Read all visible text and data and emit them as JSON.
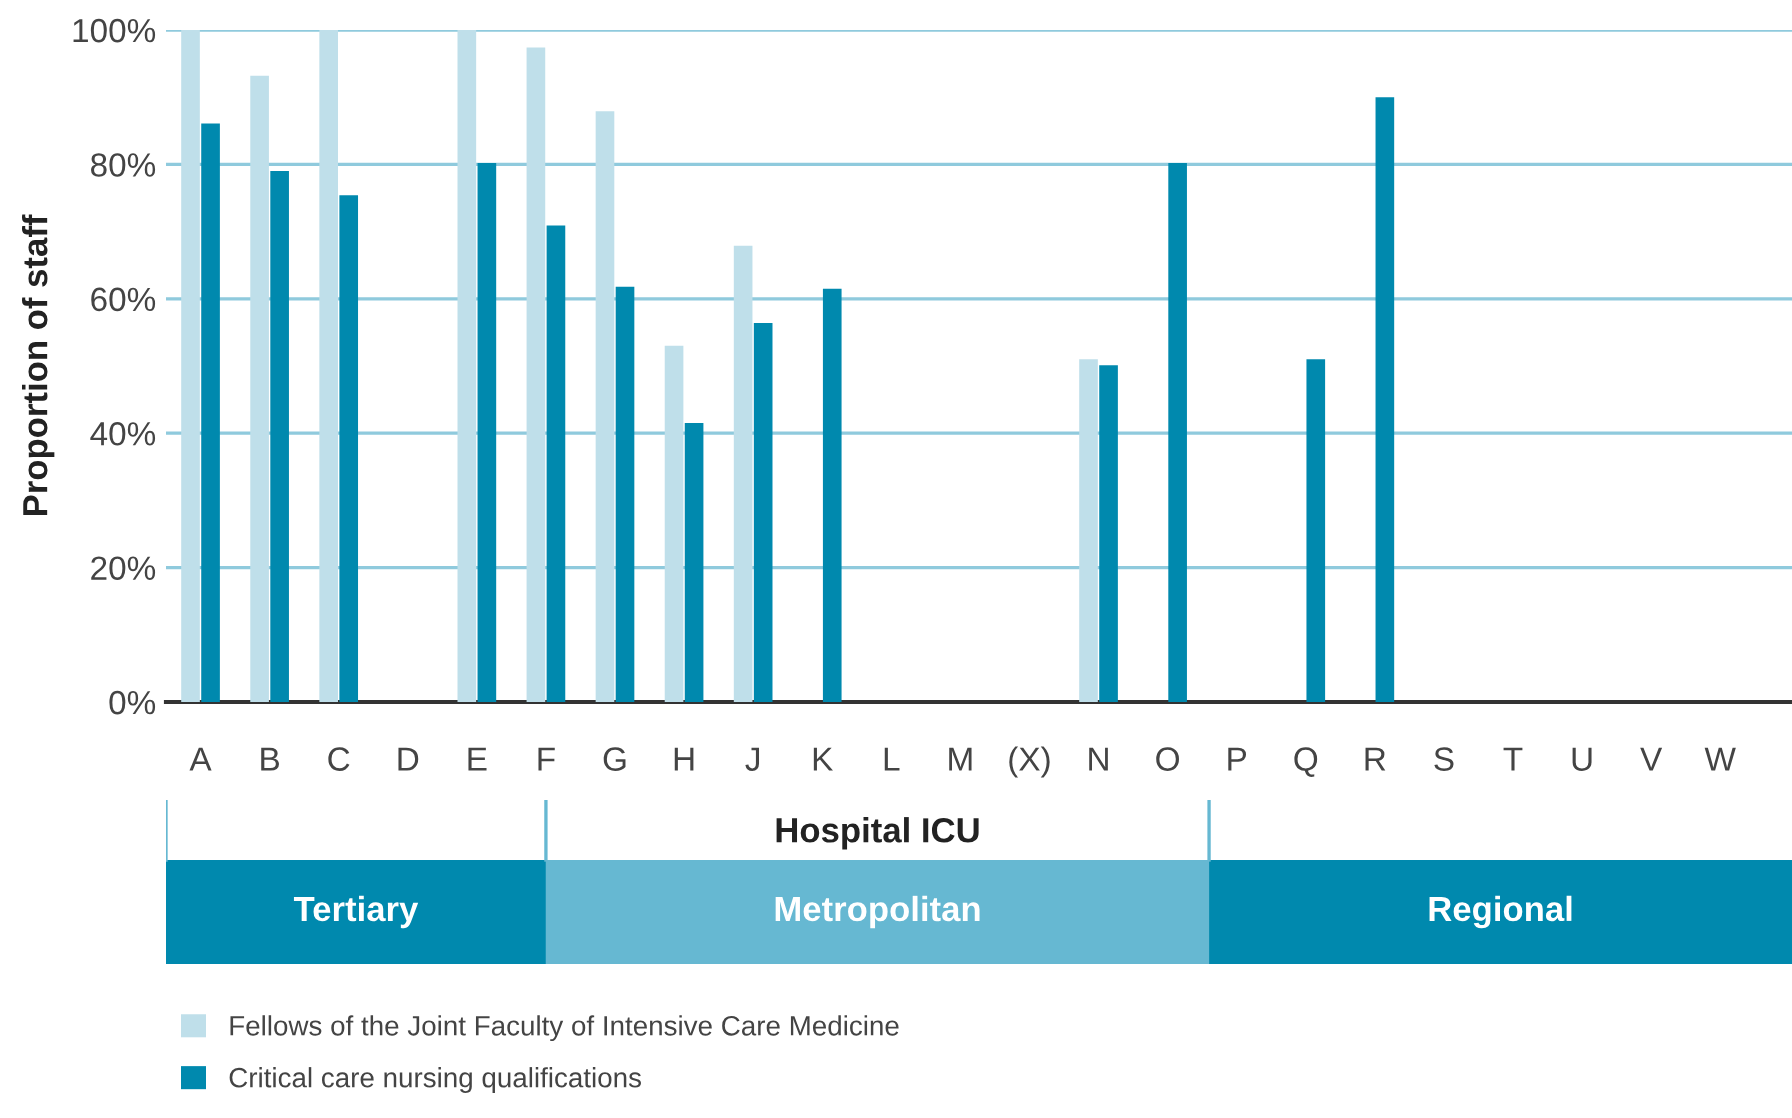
{
  "chart_data": {
    "type": "bar",
    "ylabel": "Proportion of staff",
    "categories": [
      "A",
      "B",
      "C",
      "D",
      "E",
      "F",
      "G",
      "H",
      "J",
      "K",
      "L",
      "M",
      "(X)",
      "N",
      "O",
      "P",
      "Q",
      "R",
      "S",
      "T",
      "U",
      "V",
      "W"
    ],
    "series": [
      {
        "name": "Fellows of the Joint Faculty of Intensive Care Medicine",
        "color": "#bfdfea",
        "values": [
          100,
          93.2,
          100,
          null,
          100,
          97.4,
          87.9,
          53.0,
          67.9,
          null,
          null,
          null,
          null,
          51.0,
          null,
          null,
          null,
          null,
          null,
          null,
          null,
          null,
          null
        ]
      },
      {
        "name": "Critical care nursing qualifications",
        "color": "#0089ae",
        "values": [
          86.1,
          79.0,
          75.4,
          null,
          80.2,
          70.9,
          61.8,
          41.5,
          56.4,
          61.5,
          null,
          null,
          null,
          50.1,
          80.2,
          null,
          51.0,
          90.0,
          null,
          null,
          null,
          null,
          null
        ]
      }
    ],
    "ylim": [
      0,
      100
    ],
    "yticks": [
      {
        "value": 0,
        "label": "0%"
      },
      {
        "value": 20,
        "label": "20%"
      },
      {
        "value": 40,
        "label": "40%"
      },
      {
        "value": 60,
        "label": "60%"
      },
      {
        "value": 80,
        "label": "80%"
      },
      {
        "value": 100,
        "label": "100%"
      }
    ],
    "grid": "y",
    "legend": "bottom left",
    "annotations": [
      "Hospital ICU",
      "Tertiary",
      "Metropolitan",
      "Regional"
    ]
  }
}
